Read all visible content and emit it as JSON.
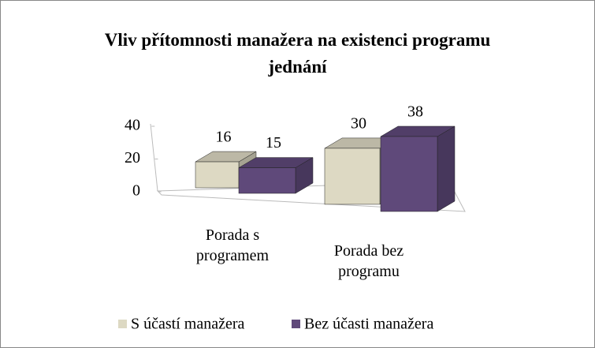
{
  "chart_data": {
    "type": "bar3d",
    "title": "Vliv přítomnosti manažera na existenci programu jednání",
    "categories": [
      "Porada s programem",
      "Porada bez programu"
    ],
    "series": [
      {
        "name": "S účastí manažera",
        "color": "#ddd9c3",
        "values": [
          16,
          30
        ]
      },
      {
        "name": "Bez účasti manažera",
        "color": "#5f497a",
        "values": [
          15,
          38
        ]
      }
    ],
    "ylim": [
      0,
      40
    ],
    "yticks": [
      0,
      20,
      40
    ],
    "legend": "bottom"
  }
}
